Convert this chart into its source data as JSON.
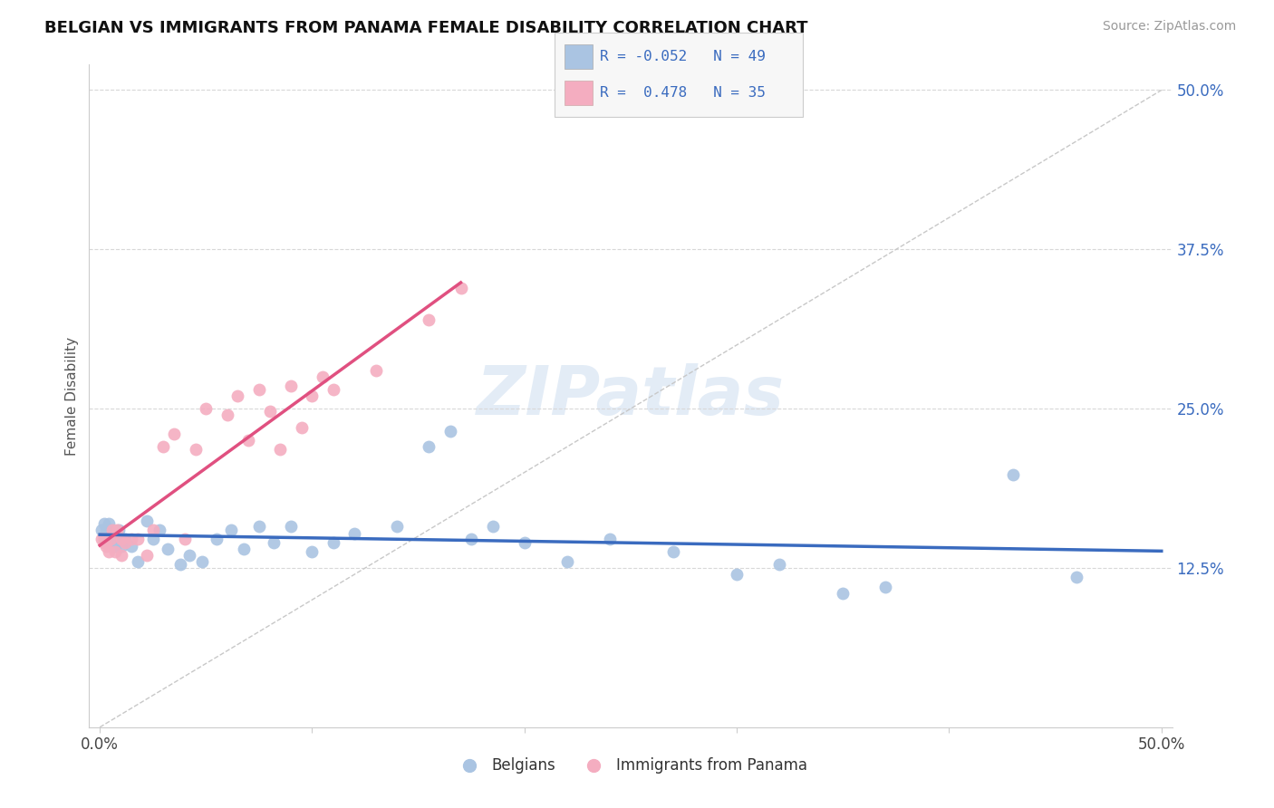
{
  "title": "BELGIAN VS IMMIGRANTS FROM PANAMA FEMALE DISABILITY CORRELATION CHART",
  "source": "Source: ZipAtlas.com",
  "ylabel": "Female Disability",
  "xlim": [
    0.0,
    0.5
  ],
  "ylim": [
    0.0,
    0.5
  ],
  "x_ticks": [
    0.0,
    0.1,
    0.2,
    0.3,
    0.4,
    0.5
  ],
  "x_tick_labels": [
    "0.0%",
    "",
    "",
    "",
    "",
    "50.0%"
  ],
  "y_tick_labels_right": [
    "12.5%",
    "25.0%",
    "37.5%",
    "50.0%"
  ],
  "y_tick_vals_right": [
    0.125,
    0.25,
    0.375,
    0.5
  ],
  "legend_r_belgian": "-0.052",
  "legend_n_belgian": "49",
  "legend_r_panama": "0.478",
  "legend_n_panama": "35",
  "belgian_color": "#aac4e2",
  "panama_color": "#f4adc0",
  "trend_belgian_color": "#3a6bbf",
  "trend_panama_color": "#e05080",
  "belgians_x": [
    0.001,
    0.002,
    0.002,
    0.003,
    0.003,
    0.004,
    0.004,
    0.005,
    0.005,
    0.006,
    0.006,
    0.007,
    0.008,
    0.009,
    0.01,
    0.012,
    0.015,
    0.018,
    0.022,
    0.025,
    0.028,
    0.032,
    0.038,
    0.042,
    0.048,
    0.055,
    0.062,
    0.068,
    0.075,
    0.082,
    0.09,
    0.1,
    0.11,
    0.12,
    0.14,
    0.155,
    0.165,
    0.175,
    0.185,
    0.2,
    0.22,
    0.24,
    0.27,
    0.3,
    0.32,
    0.35,
    0.37,
    0.43,
    0.46
  ],
  "belgians_y": [
    0.155,
    0.15,
    0.16,
    0.145,
    0.155,
    0.15,
    0.16,
    0.145,
    0.155,
    0.148,
    0.152,
    0.142,
    0.148,
    0.155,
    0.142,
    0.148,
    0.142,
    0.13,
    0.162,
    0.148,
    0.155,
    0.14,
    0.128,
    0.135,
    0.13,
    0.148,
    0.155,
    0.14,
    0.158,
    0.145,
    0.158,
    0.138,
    0.145,
    0.152,
    0.158,
    0.22,
    0.232,
    0.148,
    0.158,
    0.145,
    0.13,
    0.148,
    0.138,
    0.12,
    0.128,
    0.105,
    0.11,
    0.198,
    0.118
  ],
  "panama_x": [
    0.001,
    0.002,
    0.002,
    0.003,
    0.004,
    0.005,
    0.006,
    0.007,
    0.008,
    0.01,
    0.01,
    0.012,
    0.015,
    0.018,
    0.022,
    0.025,
    0.03,
    0.035,
    0.04,
    0.045,
    0.05,
    0.06,
    0.065,
    0.07,
    0.075,
    0.08,
    0.085,
    0.09,
    0.095,
    0.1,
    0.105,
    0.11,
    0.13,
    0.155,
    0.17
  ],
  "panama_y": [
    0.148,
    0.148,
    0.145,
    0.142,
    0.138,
    0.148,
    0.155,
    0.138,
    0.155,
    0.148,
    0.135,
    0.145,
    0.148,
    0.148,
    0.135,
    0.155,
    0.22,
    0.23,
    0.148,
    0.218,
    0.25,
    0.245,
    0.26,
    0.225,
    0.265,
    0.248,
    0.218,
    0.268,
    0.235,
    0.26,
    0.275,
    0.265,
    0.28,
    0.32,
    0.345
  ]
}
